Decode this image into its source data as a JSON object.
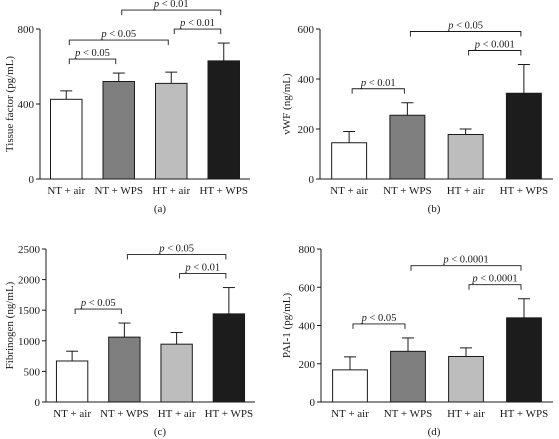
{
  "chart_data": [
    {
      "type": "bar",
      "panel_label": "(a)",
      "ylabel": "Tissue factor (pg/mL)",
      "categories": [
        "NT + air",
        "NT + WPS",
        "HT + air",
        "HT + WPS"
      ],
      "values": [
        425,
        520,
        510,
        630
      ],
      "errors": [
        45,
        45,
        60,
        95
      ],
      "ylim": [
        0,
        800
      ],
      "yticks": [
        0,
        400,
        800
      ],
      "colors": [
        "#ffffff",
        "#7f7f7f",
        "#bdbdbd",
        "#1c1c1c"
      ],
      "comparisons": [
        {
          "from": 0,
          "to": 1,
          "label": "p < 0.05",
          "p_prefix": "p",
          "p_rest": " < 0.05",
          "level": 0
        },
        {
          "from": 0,
          "to": 2,
          "label": "p < 0.05",
          "p_prefix": "p",
          "p_rest": " < 0.05",
          "level": 1
        },
        {
          "from": 2,
          "to": 3,
          "label": "p < 0.01",
          "p_prefix": "p",
          "p_rest": " < 0.01",
          "level": 1
        },
        {
          "from": 1,
          "to": 3,
          "label": "p < 0.01",
          "p_prefix": "p",
          "p_rest": " < 0.01",
          "level": 2
        }
      ]
    },
    {
      "type": "bar",
      "panel_label": "(b)",
      "ylabel": "vWF (ng/mL)",
      "categories": [
        "NT + air",
        "NT + WPS",
        "HT + air",
        "HT + WPS"
      ],
      "values": [
        145,
        255,
        178,
        343
      ],
      "errors": [
        45,
        50,
        22,
        115
      ],
      "ylim": [
        0,
        600
      ],
      "yticks": [
        0,
        200,
        400,
        600
      ],
      "colors": [
        "#ffffff",
        "#7f7f7f",
        "#bdbdbd",
        "#1c1c1c"
      ],
      "comparisons": [
        {
          "from": 0,
          "to": 1,
          "label": "p < 0.01",
          "p_prefix": "p",
          "p_rest": " < 0.01",
          "level": 0
        },
        {
          "from": 2,
          "to": 3,
          "label": "p < 0.001",
          "p_prefix": "p",
          "p_rest": " < 0.001",
          "level": 1
        },
        {
          "from": 1,
          "to": 3,
          "label": "p < 0.05",
          "p_prefix": "p",
          "p_rest": " < 0.05",
          "level": 2
        }
      ]
    },
    {
      "type": "bar",
      "panel_label": "(c)",
      "ylabel": "Fibrinogen (ng/mL)",
      "categories": [
        "NT + air",
        "NT + WPS",
        "HT + air",
        "HT + WPS"
      ],
      "values": [
        670,
        1060,
        945,
        1440
      ],
      "errors": [
        160,
        230,
        190,
        430
      ],
      "ylim": [
        0,
        2500
      ],
      "yticks": [
        0,
        500,
        1000,
        1500,
        2000,
        2500
      ],
      "colors": [
        "#ffffff",
        "#7f7f7f",
        "#bdbdbd",
        "#1c1c1c"
      ],
      "comparisons": [
        {
          "from": 0,
          "to": 1,
          "label": "p < 0.05",
          "p_prefix": "p",
          "p_rest": " < 0.05",
          "level": 0
        },
        {
          "from": 2,
          "to": 3,
          "label": "p < 0.01",
          "p_prefix": "p",
          "p_rest": " < 0.01",
          "level": 1
        },
        {
          "from": 1,
          "to": 3,
          "label": "p < 0.05",
          "p_prefix": "p",
          "p_rest": " < 0.05",
          "level": 2
        }
      ]
    },
    {
      "type": "bar",
      "panel_label": "(d)",
      "ylabel": "PAI-1 (pg/mL)",
      "categories": [
        "NT + air",
        "NT + WPS",
        "HT + air",
        "HT + WPS"
      ],
      "values": [
        168,
        265,
        238,
        440
      ],
      "errors": [
        68,
        70,
        45,
        100
      ],
      "ylim": [
        0,
        800
      ],
      "yticks": [
        0,
        200,
        400,
        600,
        800
      ],
      "colors": [
        "#ffffff",
        "#7f7f7f",
        "#bdbdbd",
        "#1c1c1c"
      ],
      "comparisons": [
        {
          "from": 0,
          "to": 1,
          "label": "p < 0.05",
          "p_prefix": "p",
          "p_rest": " < 0.05",
          "level": 0
        },
        {
          "from": 2,
          "to": 3,
          "label": "p < 0.0001",
          "p_prefix": "p",
          "p_rest": " < 0.0001",
          "level": 1
        },
        {
          "from": 1,
          "to": 3,
          "label": "p < 0.0001",
          "p_prefix": "p",
          "p_rest": " < 0.0001",
          "level": 2
        }
      ]
    }
  ]
}
